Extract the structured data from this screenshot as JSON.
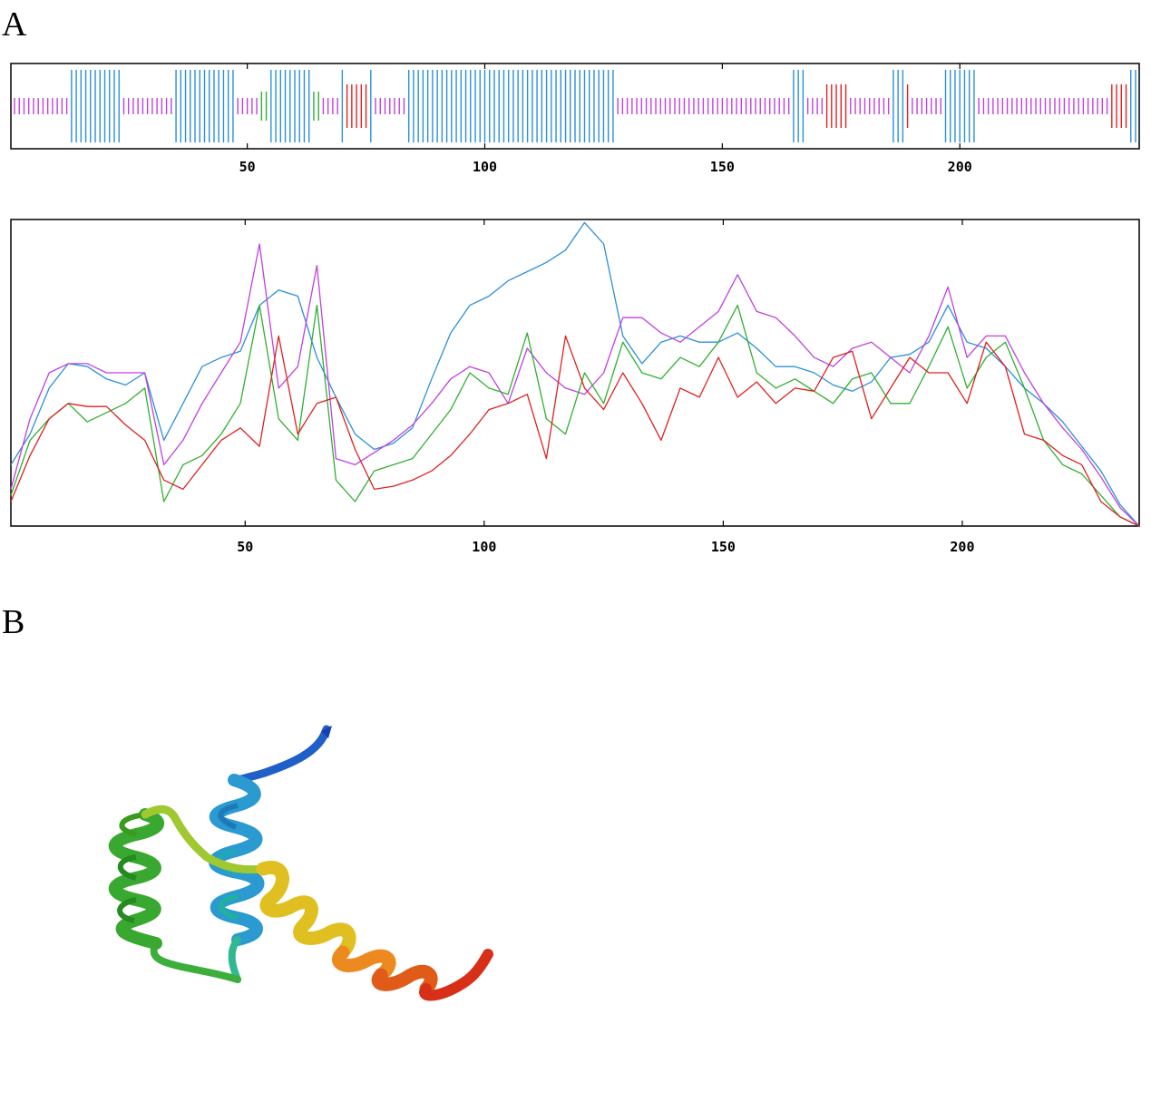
{
  "figure": {
    "panel_a_label": "A",
    "panel_b_label": "B"
  },
  "chart_data": [
    {
      "type": "track",
      "x_range": [
        1,
        237
      ],
      "xticks": [
        50,
        100,
        150,
        200
      ],
      "tick_labels": [
        "50",
        "100",
        "150",
        "200"
      ],
      "grid": false,
      "colors": {
        "coil": "#c040e0",
        "helix": "#2a90d8",
        "strand": "#e02020",
        "turn": "#30b030"
      },
      "segments": [
        {
          "state": "coil",
          "start": 1,
          "end": 12
        },
        {
          "state": "helix",
          "start": 13,
          "end": 23
        },
        {
          "state": "coil",
          "start": 24,
          "end": 34
        },
        {
          "state": "helix",
          "start": 35,
          "end": 47
        },
        {
          "state": "coil",
          "start": 48,
          "end": 52
        },
        {
          "state": "turn",
          "start": 53,
          "end": 54
        },
        {
          "state": "helix",
          "start": 55,
          "end": 63
        },
        {
          "state": "turn",
          "start": 64,
          "end": 65
        },
        {
          "state": "coil",
          "start": 66,
          "end": 69
        },
        {
          "state": "helix",
          "start": 70,
          "end": 70
        },
        {
          "state": "strand",
          "start": 71,
          "end": 75
        },
        {
          "state": "helix",
          "start": 76,
          "end": 76
        },
        {
          "state": "coil",
          "start": 77,
          "end": 83
        },
        {
          "state": "helix",
          "start": 84,
          "end": 127
        },
        {
          "state": "coil",
          "start": 128,
          "end": 164
        },
        {
          "state": "helix",
          "start": 165,
          "end": 167
        },
        {
          "state": "coil",
          "start": 168,
          "end": 171
        },
        {
          "state": "strand",
          "start": 172,
          "end": 176
        },
        {
          "state": "coil",
          "start": 177,
          "end": 185
        },
        {
          "state": "helix",
          "start": 186,
          "end": 188
        },
        {
          "state": "strand",
          "start": 189,
          "end": 189
        },
        {
          "state": "coil",
          "start": 190,
          "end": 196
        },
        {
          "state": "helix",
          "start": 197,
          "end": 203
        },
        {
          "state": "coil",
          "start": 204,
          "end": 231
        },
        {
          "state": "strand",
          "start": 232,
          "end": 235
        },
        {
          "state": "helix",
          "start": 236,
          "end": 237
        }
      ]
    },
    {
      "type": "line",
      "x_range": [
        1,
        237
      ],
      "ylim": [
        0,
        1
      ],
      "xticks": [
        50,
        100,
        150,
        200
      ],
      "tick_labels": [
        "50",
        "100",
        "150",
        "200"
      ],
      "grid": false,
      "series": [
        {
          "color": "#2a90d8",
          "x": [
            1,
            5,
            9,
            13,
            17,
            21,
            25,
            29,
            33,
            37,
            41,
            45,
            49,
            53,
            57,
            61,
            65,
            69,
            73,
            77,
            81,
            85,
            89,
            93,
            97,
            101,
            105,
            109,
            113,
            117,
            121,
            125,
            129,
            133,
            137,
            141,
            145,
            149,
            153,
            157,
            161,
            165,
            169,
            173,
            177,
            181,
            185,
            189,
            193,
            197,
            201,
            205,
            209,
            213,
            217,
            221,
            225,
            229,
            233,
            237
          ],
          "y": [
            0.2,
            0.3,
            0.45,
            0.53,
            0.52,
            0.48,
            0.46,
            0.5,
            0.28,
            0.4,
            0.52,
            0.55,
            0.57,
            0.72,
            0.77,
            0.75,
            0.55,
            0.42,
            0.3,
            0.25,
            0.27,
            0.32,
            0.48,
            0.63,
            0.72,
            0.75,
            0.8,
            0.83,
            0.86,
            0.9,
            0.99,
            0.92,
            0.62,
            0.53,
            0.6,
            0.62,
            0.6,
            0.6,
            0.63,
            0.58,
            0.52,
            0.52,
            0.5,
            0.46,
            0.44,
            0.47,
            0.55,
            0.56,
            0.6,
            0.72,
            0.6,
            0.58,
            0.52,
            0.45,
            0.4,
            0.34,
            0.26,
            0.18,
            0.07,
            0.0
          ]
        },
        {
          "color": "#c040e0",
          "x": [
            1,
            5,
            9,
            13,
            17,
            21,
            25,
            29,
            33,
            37,
            41,
            45,
            49,
            53,
            57,
            61,
            65,
            69,
            73,
            77,
            81,
            85,
            89,
            93,
            97,
            101,
            105,
            109,
            113,
            117,
            121,
            125,
            129,
            133,
            137,
            141,
            145,
            149,
            153,
            157,
            161,
            165,
            169,
            173,
            177,
            181,
            185,
            189,
            193,
            197,
            201,
            205,
            209,
            213,
            217,
            221,
            225,
            229,
            233,
            237
          ],
          "y": [
            0.12,
            0.35,
            0.5,
            0.53,
            0.53,
            0.5,
            0.5,
            0.5,
            0.2,
            0.28,
            0.4,
            0.5,
            0.6,
            0.92,
            0.45,
            0.52,
            0.85,
            0.22,
            0.2,
            0.24,
            0.28,
            0.33,
            0.4,
            0.48,
            0.52,
            0.5,
            0.4,
            0.58,
            0.5,
            0.45,
            0.43,
            0.5,
            0.68,
            0.68,
            0.63,
            0.6,
            0.65,
            0.7,
            0.82,
            0.7,
            0.68,
            0.62,
            0.55,
            0.52,
            0.58,
            0.6,
            0.55,
            0.5,
            0.62,
            0.78,
            0.55,
            0.62,
            0.62,
            0.5,
            0.4,
            0.32,
            0.25,
            0.16,
            0.06,
            0.0
          ]
        },
        {
          "color": "#30b030",
          "x": [
            1,
            5,
            9,
            13,
            17,
            21,
            25,
            29,
            33,
            37,
            41,
            45,
            49,
            53,
            57,
            61,
            65,
            69,
            73,
            77,
            81,
            85,
            89,
            93,
            97,
            101,
            105,
            109,
            113,
            117,
            121,
            125,
            129,
            133,
            137,
            141,
            145,
            149,
            153,
            157,
            161,
            165,
            169,
            173,
            177,
            181,
            185,
            189,
            193,
            197,
            201,
            205,
            209,
            213,
            217,
            221,
            225,
            229,
            233,
            237
          ],
          "y": [
            0.1,
            0.28,
            0.35,
            0.4,
            0.34,
            0.37,
            0.4,
            0.45,
            0.08,
            0.2,
            0.23,
            0.3,
            0.4,
            0.72,
            0.35,
            0.28,
            0.72,
            0.15,
            0.08,
            0.18,
            0.2,
            0.22,
            0.3,
            0.38,
            0.5,
            0.45,
            0.43,
            0.63,
            0.35,
            0.3,
            0.5,
            0.4,
            0.6,
            0.5,
            0.48,
            0.55,
            0.52,
            0.6,
            0.72,
            0.5,
            0.45,
            0.48,
            0.44,
            0.4,
            0.48,
            0.5,
            0.4,
            0.4,
            0.52,
            0.65,
            0.45,
            0.55,
            0.6,
            0.45,
            0.28,
            0.2,
            0.17,
            0.1,
            0.03,
            0.0
          ]
        },
        {
          "color": "#e02020",
          "x": [
            1,
            5,
            9,
            13,
            17,
            21,
            25,
            29,
            33,
            37,
            41,
            45,
            49,
            53,
            57,
            61,
            65,
            69,
            73,
            77,
            81,
            85,
            89,
            93,
            97,
            101,
            105,
            109,
            113,
            117,
            121,
            125,
            129,
            133,
            137,
            141,
            145,
            149,
            153,
            157,
            161,
            165,
            169,
            173,
            177,
            181,
            185,
            189,
            193,
            197,
            201,
            205,
            209,
            213,
            217,
            221,
            225,
            229,
            233,
            237
          ],
          "y": [
            0.08,
            0.23,
            0.35,
            0.4,
            0.39,
            0.39,
            0.33,
            0.28,
            0.15,
            0.12,
            0.2,
            0.28,
            0.32,
            0.26,
            0.62,
            0.3,
            0.4,
            0.42,
            0.25,
            0.12,
            0.13,
            0.15,
            0.18,
            0.23,
            0.3,
            0.38,
            0.4,
            0.43,
            0.22,
            0.62,
            0.45,
            0.38,
            0.5,
            0.4,
            0.28,
            0.45,
            0.42,
            0.55,
            0.42,
            0.47,
            0.4,
            0.45,
            0.44,
            0.55,
            0.57,
            0.35,
            0.45,
            0.55,
            0.5,
            0.5,
            0.4,
            0.6,
            0.52,
            0.3,
            0.28,
            0.23,
            0.2,
            0.08,
            0.03,
            0.0
          ]
        }
      ]
    }
  ]
}
